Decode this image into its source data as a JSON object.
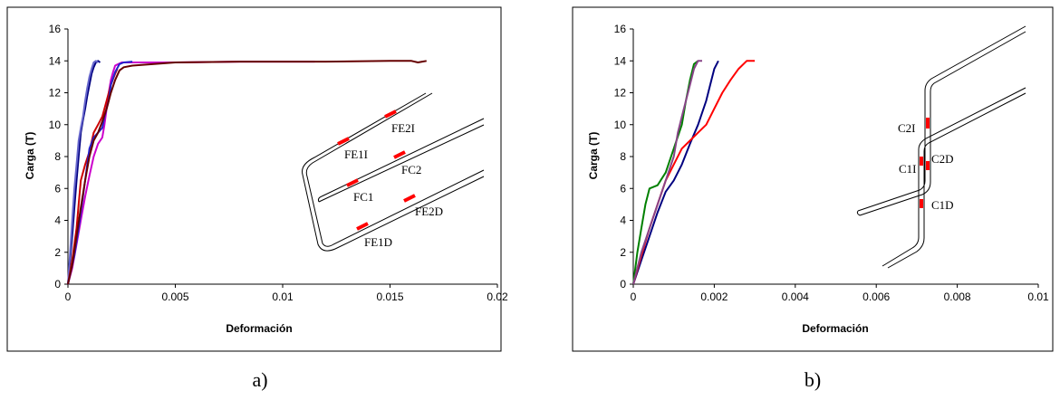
{
  "chart_data": [
    {
      "id": "a",
      "type": "line",
      "caption": "a)",
      "xlabel": "Deformación",
      "ylabel": "Carga (T)",
      "xlim": [
        0,
        0.02
      ],
      "ylim": [
        0,
        16
      ],
      "xticks": [
        0,
        0.005,
        0.01,
        0.015,
        0.02
      ],
      "xtick_labels": [
        "0",
        "0.005",
        "0.01",
        "0.015",
        "0.02"
      ],
      "yticks": [
        0,
        2,
        4,
        6,
        8,
        10,
        12,
        14,
        16
      ],
      "ytick_labels": [
        "0",
        "2",
        "4",
        "6",
        "8",
        "10",
        "12",
        "14",
        "16"
      ],
      "grid": false,
      "series": [
        {
          "color": "#000080",
          "x": [
            0,
            0.0001,
            0.0002,
            0.0003,
            0.0004,
            0.0005,
            0.0006,
            0.0007,
            0.0008,
            0.0009,
            0.001,
            0.0011,
            0.0012,
            0.0013,
            0.0014,
            0.0015
          ],
          "y": [
            0,
            1.5,
            3.0,
            4.8,
            6.5,
            8.0,
            9.5,
            10.3,
            11.0,
            11.8,
            12.5,
            13.2,
            13.6,
            13.9,
            14.0,
            13.9
          ]
        },
        {
          "color": "#6666CC",
          "x": [
            0,
            0.0001,
            0.0002,
            0.0003,
            0.0004,
            0.0005,
            0.0006,
            0.0007,
            0.0008,
            0.0009,
            0.001,
            0.0011,
            0.0012,
            0.0013,
            0.0014
          ],
          "y": [
            0,
            2.0,
            4.0,
            6.0,
            7.5,
            9.0,
            9.8,
            10.5,
            11.5,
            12.3,
            13.0,
            13.5,
            13.9,
            14.0,
            13.9
          ]
        },
        {
          "color": "#CC00CC",
          "x": [
            0,
            0.0002,
            0.0004,
            0.0006,
            0.0008,
            0.001,
            0.0012,
            0.0014,
            0.0016,
            0.0017,
            0.0018,
            0.0019,
            0.002,
            0.0021,
            0.0022,
            0.0025,
            0.003,
            0.005,
            0.008,
            0.0115
          ],
          "y": [
            0,
            1.0,
            2.5,
            4.0,
            5.5,
            6.8,
            8.0,
            8.8,
            9.2,
            10.0,
            11.0,
            12.0,
            12.8,
            13.3,
            13.7,
            13.9,
            13.9,
            13.9,
            13.95,
            13.95
          ]
        },
        {
          "color": "#CC0000",
          "x": [
            0,
            0.0002,
            0.0004,
            0.0005,
            0.0006,
            0.0008,
            0.001,
            0.0012,
            0.0014,
            0.0016,
            0.0018,
            0.002,
            0.0022,
            0.0023
          ],
          "y": [
            0,
            1.5,
            3.5,
            5.0,
            6.5,
            7.5,
            8.3,
            9.5,
            10.0,
            10.5,
            11.5,
            12.5,
            13.2,
            13.5
          ]
        },
        {
          "color": "#2222CC",
          "x": [
            0,
            0.0003,
            0.0005,
            0.0007,
            0.0009,
            0.001,
            0.0012,
            0.0014,
            0.0016,
            0.0017,
            0.0019,
            0.002,
            0.0022,
            0.0024,
            0.0026,
            0.003
          ],
          "y": [
            0,
            1.8,
            3.5,
            5.5,
            7.5,
            8.5,
            9.2,
            9.5,
            9.8,
            10.5,
            11.5,
            12.5,
            13.3,
            13.8,
            13.9,
            13.95
          ]
        },
        {
          "color": "#660000",
          "x": [
            0,
            0.0002,
            0.0004,
            0.0006,
            0.0008,
            0.001,
            0.0012,
            0.0014,
            0.0016,
            0.0018,
            0.002,
            0.0022,
            0.0024,
            0.0026,
            0.003,
            0.004,
            0.005,
            0.008,
            0.012,
            0.015,
            0.016,
            0.0163,
            0.0165,
            0.0167
          ],
          "y": [
            0,
            1.2,
            3.0,
            4.8,
            6.5,
            8.0,
            9.0,
            9.5,
            10.2,
            11.0,
            12.0,
            12.8,
            13.4,
            13.6,
            13.7,
            13.8,
            13.9,
            13.95,
            13.95,
            14.0,
            14.0,
            13.9,
            13.95,
            14.0
          ]
        }
      ],
      "annotations": [
        "FE1I",
        "FE2I",
        "FC1",
        "FC2",
        "FE1D",
        "FE2D"
      ]
    },
    {
      "id": "b",
      "type": "line",
      "caption": "b)",
      "xlabel": "Deformación",
      "ylabel": "Carga (T)",
      "xlim": [
        0,
        0.01
      ],
      "ylim": [
        0,
        16
      ],
      "xticks": [
        0,
        0.002,
        0.004,
        0.006,
        0.008,
        0.01
      ],
      "xtick_labels": [
        "0",
        "0.002",
        "0.004",
        "0.006",
        "0.008",
        "0.01"
      ],
      "yticks": [
        0,
        2,
        4,
        6,
        8,
        10,
        12,
        14,
        16
      ],
      "ytick_labels": [
        "0",
        "2",
        "4",
        "6",
        "8",
        "10",
        "12",
        "14",
        "16"
      ],
      "grid": false,
      "series": [
        {
          "color": "#000080",
          "x": [
            0,
            0.0002,
            0.0004,
            0.0006,
            0.0008,
            0.001,
            0.0012,
            0.0014,
            0.0016,
            0.0018,
            0.0019,
            0.002,
            0.0021
          ],
          "y": [
            0,
            1.5,
            3.0,
            4.5,
            5.8,
            6.5,
            7.5,
            8.8,
            10.0,
            11.5,
            12.5,
            13.5,
            14.0
          ]
        },
        {
          "color": "#FF0000",
          "x": [
            0,
            0.0002,
            0.0004,
            0.0006,
            0.0008,
            0.001,
            0.0012,
            0.0014,
            0.0016,
            0.0018,
            0.002,
            0.0022,
            0.0024,
            0.0026,
            0.0028,
            0.003
          ],
          "y": [
            0,
            1.8,
            3.5,
            5.0,
            6.5,
            7.5,
            8.5,
            9.0,
            9.5,
            10.0,
            11.0,
            12.0,
            12.8,
            13.5,
            14.0,
            14.0
          ]
        },
        {
          "color": "#008000",
          "x": [
            0,
            0.0001,
            0.0002,
            0.0003,
            0.0004,
            0.0006,
            0.0008,
            0.001,
            0.0012,
            0.0013,
            0.0014,
            0.0015,
            0.0016
          ],
          "y": [
            0,
            2.0,
            3.5,
            5.0,
            6.0,
            6.2,
            7.0,
            8.5,
            10.0,
            11.5,
            12.8,
            13.8,
            14.0
          ]
        },
        {
          "color": "#884488",
          "x": [
            0,
            0.0002,
            0.0004,
            0.0006,
            0.0008,
            0.001,
            0.0011,
            0.0012,
            0.0013,
            0.0014,
            0.0015,
            0.0016,
            0.0017
          ],
          "y": [
            0,
            2.0,
            3.5,
            5.0,
            6.5,
            8.0,
            9.5,
            10.5,
            11.5,
            12.5,
            13.5,
            14.0,
            14.0
          ]
        }
      ],
      "annotations": [
        "C2I",
        "C1I",
        "C2D",
        "C1D"
      ]
    }
  ]
}
